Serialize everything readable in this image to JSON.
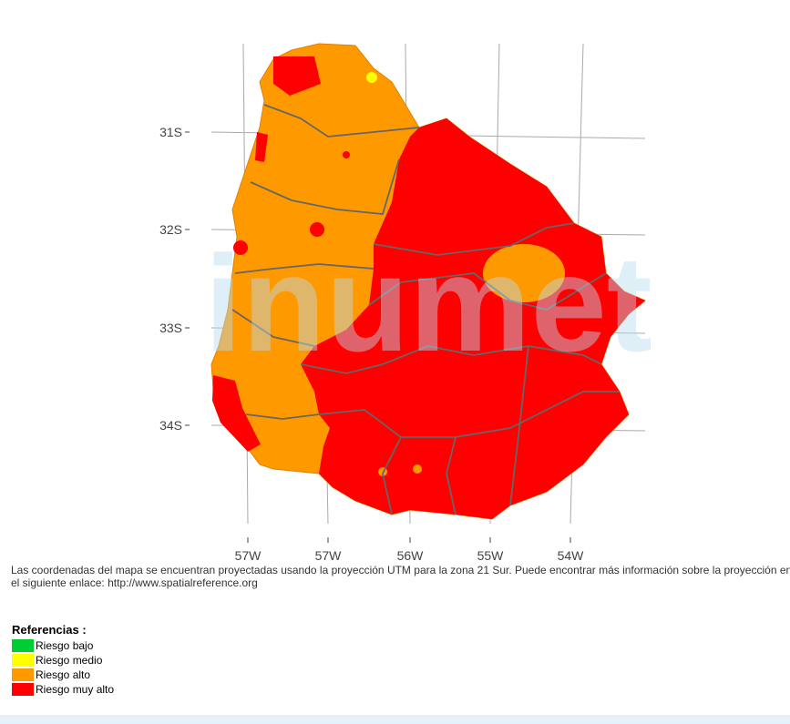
{
  "map": {
    "y_labels": [
      "31S",
      "32S",
      "33S",
      "34S"
    ],
    "x_labels": [
      "57W",
      "57W",
      "56W",
      "55W",
      "54W"
    ],
    "watermark": "inumet"
  },
  "note": {
    "line1": "Las coordenadas del mapa se encuentran proyectadas usando la proyección UTM para la zona 21 Sur. Puede encontrar más información sobre la proyección en",
    "line2": "el siguiente enlace:",
    "link": "http://www.spatialreference.org"
  },
  "legend": {
    "title": "Referencias :",
    "items": [
      {
        "label": "Riesgo bajo",
        "color": "#00cc33"
      },
      {
        "label": "Riesgo medio",
        "color": "#ffff00"
      },
      {
        "label": "Riesgo alto",
        "color": "#ff9900"
      },
      {
        "label": "Riesgo muy alto",
        "color": "#ff0000"
      }
    ]
  }
}
